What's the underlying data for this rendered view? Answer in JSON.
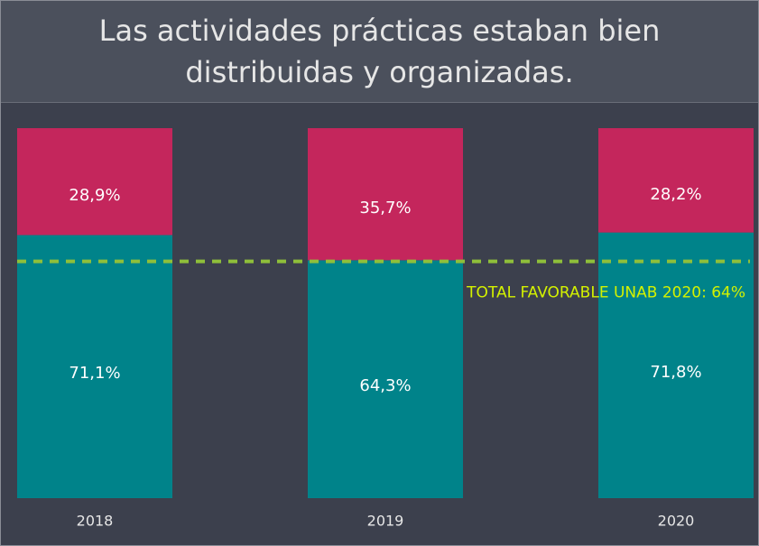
{
  "chart_data": {
    "type": "stacked_bar",
    "title": "Las actividades prácticas estaban bien distribuidas y organizadas.",
    "categories": [
      "2018",
      "2019",
      "2020"
    ],
    "series": [
      {
        "color": "#00838a",
        "values": [
          71.1,
          64.3,
          71.8
        ],
        "value_labels": [
          "71,1%",
          "64,3%",
          "71,8%"
        ]
      },
      {
        "color": "#c4265c",
        "values": [
          28.9,
          35.7,
          28.2
        ],
        "value_labels": [
          "28,9%",
          "35,7%",
          "28,2%"
        ]
      }
    ],
    "ylim": [
      0,
      100
    ],
    "reference_line": {
      "value": 64,
      "label": "TOTAL FAVORABLE UNAB 2020: 64%",
      "color": "#8fbf3a",
      "label_color": "#d4f200"
    }
  }
}
